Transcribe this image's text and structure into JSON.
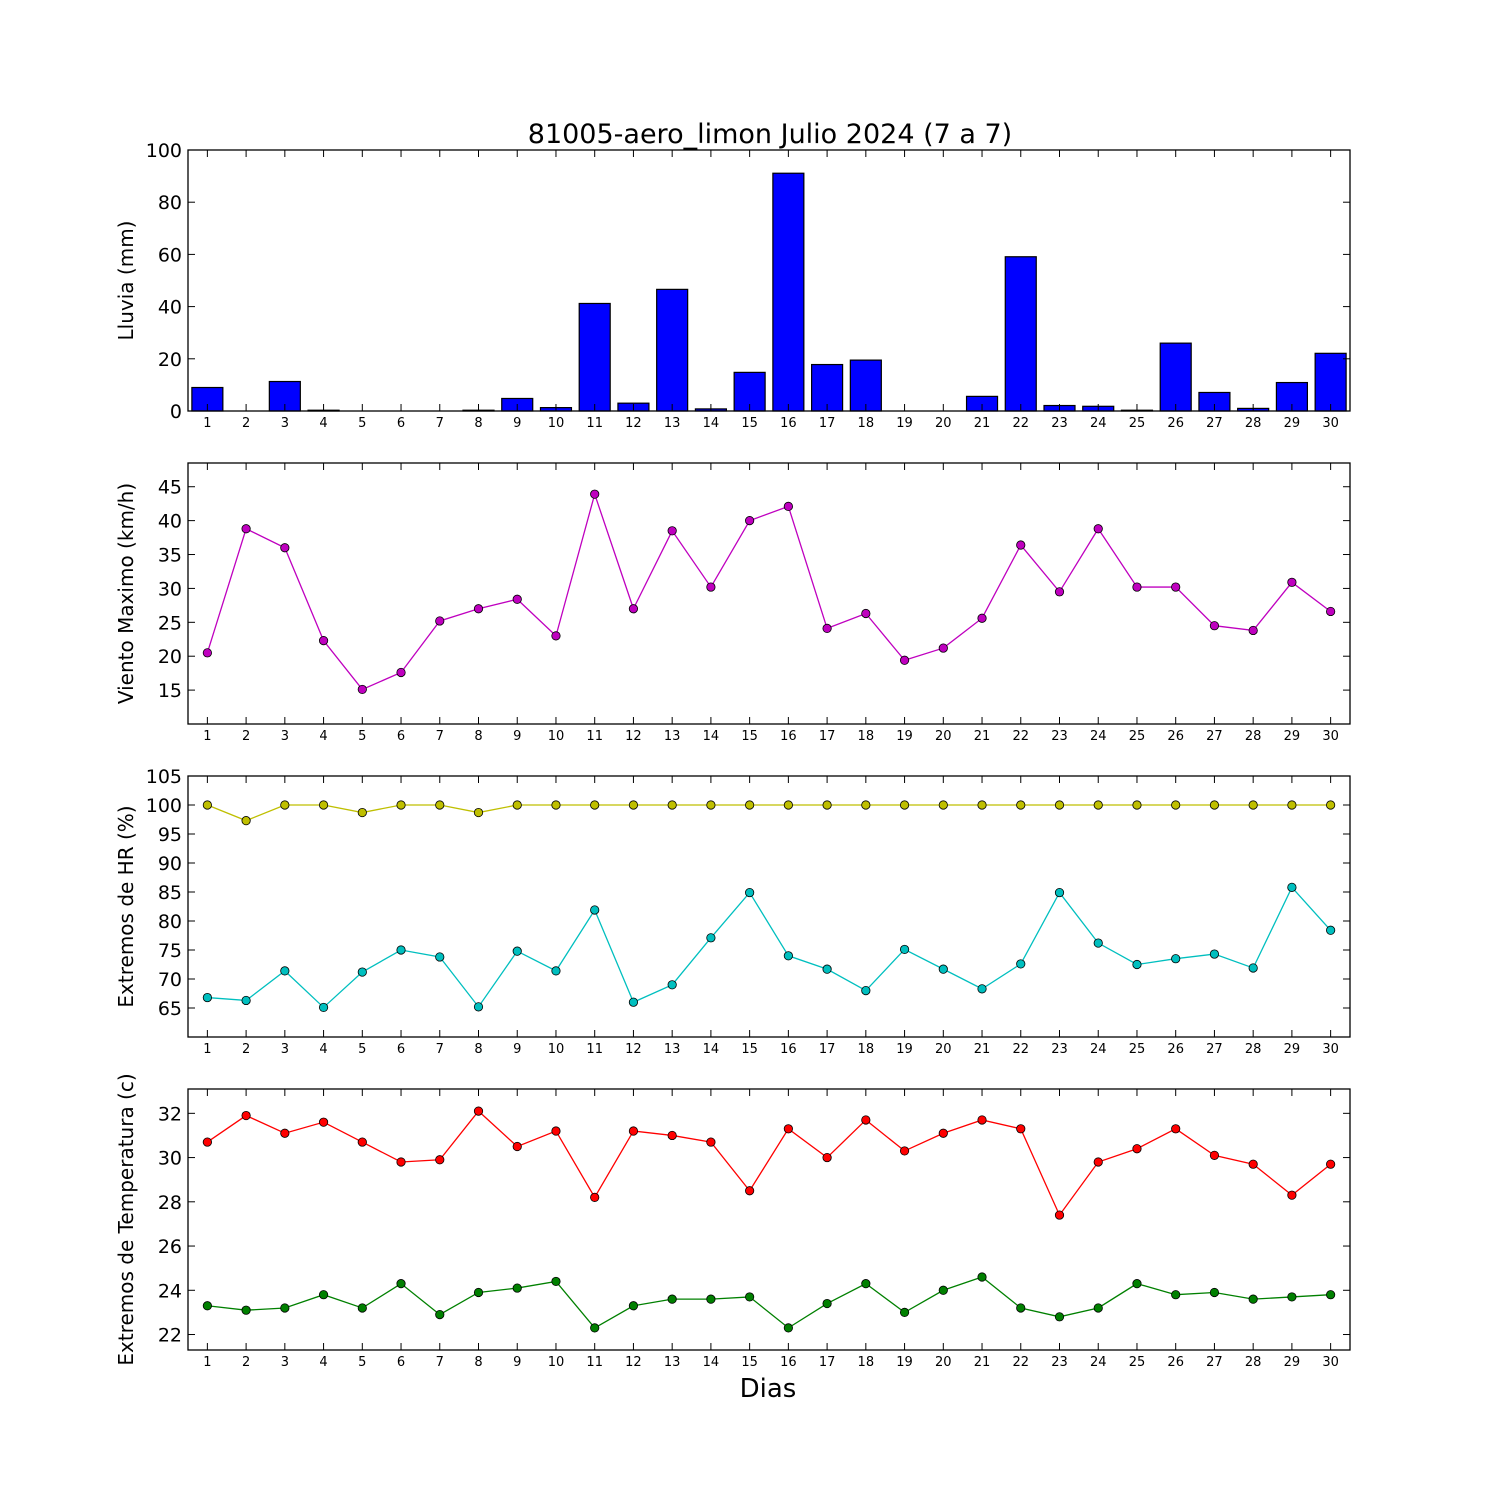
{
  "figure": {
    "title": "81005-aero_limon Julio 2024  (7 a 7)",
    "xlabel": "Dias"
  },
  "chart_data": [
    {
      "type": "bar",
      "ylabel": "Lluvia (mm)",
      "categories": [
        "1",
        "2",
        "3",
        "4",
        "5",
        "6",
        "7",
        "8",
        "9",
        "10",
        "11",
        "12",
        "13",
        "14",
        "15",
        "16",
        "17",
        "18",
        "19",
        "20",
        "21",
        "22",
        "23",
        "24",
        "25",
        "26",
        "27",
        "28",
        "29",
        "30"
      ],
      "ylim": [
        0,
        100
      ],
      "yticks": [
        0,
        20,
        40,
        60,
        80,
        100
      ],
      "series": [
        {
          "color": "#0000ff",
          "values": [
            9.0,
            0,
            11.3,
            0.3,
            0,
            0,
            0,
            0.3,
            4.8,
            1.3,
            41.2,
            3.0,
            46.6,
            0.8,
            14.8,
            91.1,
            17.8,
            19.5,
            0,
            0,
            5.6,
            59.1,
            2.1,
            1.8,
            0.3,
            26.0,
            7.1,
            1.0,
            10.9,
            22.1
          ]
        }
      ]
    },
    {
      "type": "line",
      "ylabel": "Viento Maximo (km/h)",
      "x": [
        1,
        2,
        3,
        4,
        5,
        6,
        7,
        8,
        9,
        10,
        11,
        12,
        13,
        14,
        15,
        16,
        17,
        18,
        19,
        20,
        21,
        22,
        23,
        24,
        25,
        26,
        27,
        28,
        29,
        30
      ],
      "ylim": [
        10,
        48.5
      ],
      "yticks": [
        15,
        20,
        25,
        30,
        35,
        40,
        45
      ],
      "series": [
        {
          "color": "#bf00bf",
          "values": [
            20.5,
            38.8,
            36.0,
            22.3,
            15.1,
            17.6,
            25.2,
            27.0,
            28.4,
            23.0,
            43.9,
            27.0,
            38.5,
            30.2,
            40.0,
            42.1,
            24.1,
            26.3,
            19.4,
            21.2,
            25.6,
            36.4,
            29.5,
            38.8,
            30.2,
            30.2,
            24.5,
            23.8,
            30.9,
            26.6
          ]
        }
      ]
    },
    {
      "type": "line",
      "ylabel": "Extremos de HR (%)",
      "x": [
        1,
        2,
        3,
        4,
        5,
        6,
        7,
        8,
        9,
        10,
        11,
        12,
        13,
        14,
        15,
        16,
        17,
        18,
        19,
        20,
        21,
        22,
        23,
        24,
        25,
        26,
        27,
        28,
        29,
        30
      ],
      "ylim": [
        60,
        105
      ],
      "yticks": [
        65,
        70,
        75,
        80,
        85,
        90,
        95,
        100,
        105
      ],
      "series": [
        {
          "color": "#bfbf00",
          "values": [
            100,
            97.3,
            100,
            100,
            98.7,
            100,
            100,
            98.7,
            100,
            100,
            100,
            100,
            100,
            100,
            100,
            100,
            100,
            100,
            100,
            100,
            100,
            100,
            100,
            100,
            100,
            100,
            100,
            100,
            100,
            100
          ]
        },
        {
          "color": "#00bfbf",
          "values": [
            66.8,
            66.3,
            71.4,
            65.1,
            71.2,
            75.0,
            73.8,
            65.2,
            74.8,
            71.4,
            81.9,
            66.0,
            69.0,
            77.1,
            84.9,
            74.0,
            71.7,
            68.0,
            75.1,
            71.7,
            68.3,
            72.6,
            84.9,
            76.2,
            72.5,
            73.5,
            74.3,
            71.9,
            85.8,
            78.4
          ]
        }
      ]
    },
    {
      "type": "line",
      "ylabel": "Extremos de Temperatura (c)",
      "x": [
        1,
        2,
        3,
        4,
        5,
        6,
        7,
        8,
        9,
        10,
        11,
        12,
        13,
        14,
        15,
        16,
        17,
        18,
        19,
        20,
        21,
        22,
        23,
        24,
        25,
        26,
        27,
        28,
        29,
        30
      ],
      "ylim": [
        21.3,
        33.1
      ],
      "yticks": [
        22,
        24,
        26,
        28,
        30,
        32
      ],
      "series": [
        {
          "color": "#ff0000",
          "values": [
            30.7,
            31.9,
            31.1,
            31.6,
            30.7,
            29.8,
            29.9,
            32.1,
            30.5,
            31.2,
            28.2,
            31.2,
            31.0,
            30.7,
            28.5,
            31.3,
            30.0,
            31.7,
            30.3,
            31.1,
            31.7,
            31.3,
            27.4,
            29.8,
            30.4,
            31.3,
            30.1,
            29.7,
            28.3,
            29.7
          ]
        },
        {
          "color": "#008000",
          "values": [
            23.3,
            23.1,
            23.2,
            23.8,
            23.2,
            24.3,
            22.9,
            23.9,
            24.1,
            24.4,
            22.3,
            23.3,
            23.6,
            23.6,
            23.7,
            22.3,
            23.4,
            24.3,
            23.0,
            24.0,
            24.6,
            23.2,
            22.8,
            23.2,
            24.3,
            23.8,
            23.9,
            23.6,
            23.7,
            23.8
          ]
        }
      ]
    }
  ]
}
